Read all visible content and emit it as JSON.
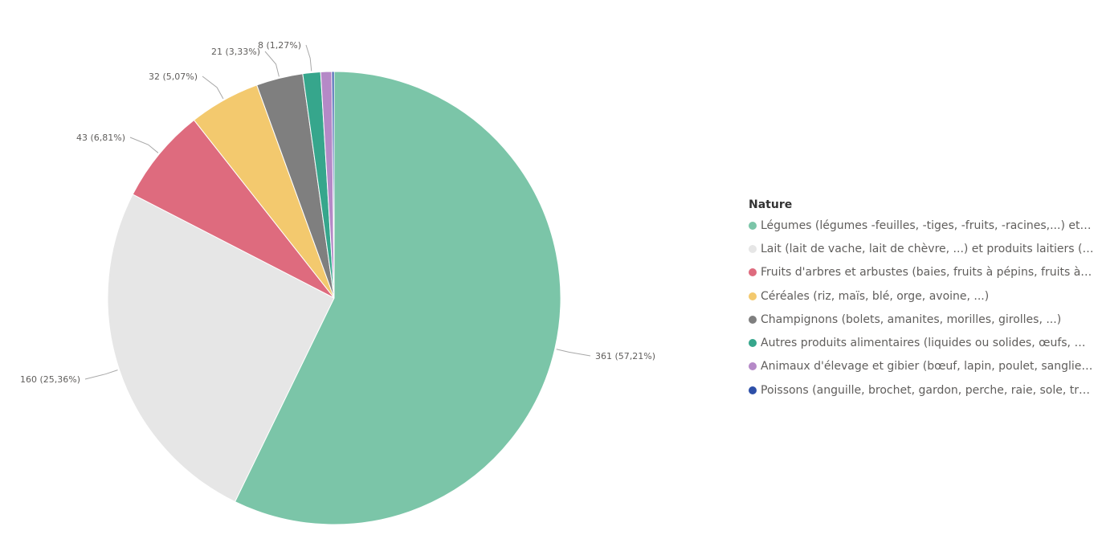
{
  "chart_data": {
    "type": "pie",
    "legend_title": "Nature",
    "legend_position": "right",
    "slices": [
      {
        "label": "Légumes (légumes -feuilles, -tiges, -fruits, -racines,...) et fi…",
        "value": 361,
        "data_label": "361 (57,21%)",
        "color": "#7bc5a8"
      },
      {
        "label": "Lait (lait de vache, lait de chèvre, ...) et produits laitiers (c…",
        "value": 160,
        "data_label": "160 (25,36%)",
        "color": "#e6e6e6"
      },
      {
        "label": "Fruits d'arbres et arbustes (baies, fruits à pépins, fruits à …",
        "value": 43,
        "data_label": "43 (6,81%)",
        "color": "#de6b7e"
      },
      {
        "label": "Céréales  (riz, maïs, blé, orge, avoine, ...)",
        "value": 32,
        "data_label": "32 (5,07%)",
        "color": "#f3c96e"
      },
      {
        "label": "Champignons (bolets, amanites, morilles, girolles, ...)",
        "value": 21,
        "data_label": "21 (3,33%)",
        "color": "#7f7f7f"
      },
      {
        "label": "Autres produits alimentaires (liquides ou solides, œufs, m…",
        "value": 8,
        "data_label": "8 (1,27%)",
        "color": "#36a68c"
      },
      {
        "label": "Animaux d'élevage et gibier (bœuf, lapin, poulet, sanglier,…",
        "value": 5,
        "data_label": "",
        "color": "#b589c7"
      },
      {
        "label": "Poissons (anguille, brochet, gardon, perche, raie, sole, tru…",
        "value": 1,
        "data_label": "",
        "color": "#2d4fa8"
      }
    ]
  }
}
